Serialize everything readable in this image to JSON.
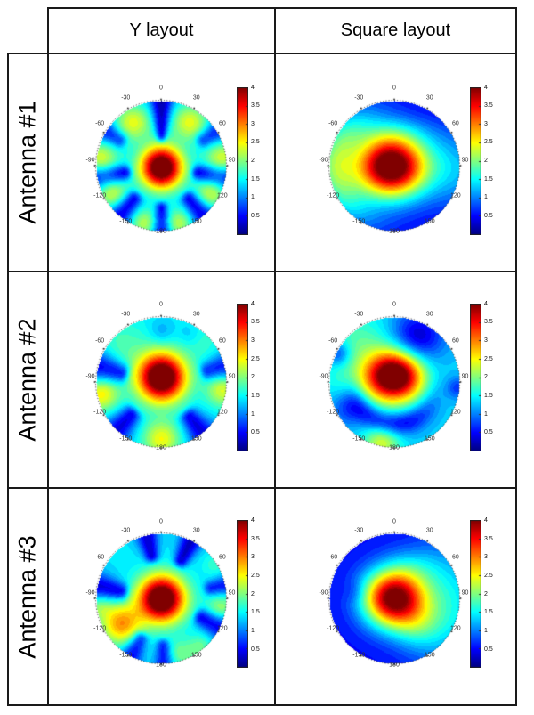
{
  "table": {
    "col_headers": [
      "Y layout",
      "Square layout"
    ],
    "row_headers": [
      "Antenna #1",
      "Antenna #2",
      "Antenna #3"
    ]
  },
  "colors": {
    "border": "#1a1a1a",
    "angle_label": "#333333",
    "tick_label": "#111111"
  },
  "chart_data": [
    {
      "type": "polar-heatmap",
      "row": "Antenna #1",
      "column": "Y layout",
      "angle_ticks_deg": [
        0,
        30,
        60,
        90,
        120,
        150,
        180,
        -150,
        -120,
        -90,
        -60,
        -30
      ],
      "colorbar": {
        "min": 0,
        "max": 4,
        "ticks": [
          4,
          3.5,
          3,
          2.5,
          2,
          1.5,
          1,
          0.5
        ],
        "colormap": "jet"
      },
      "pattern": {
        "base": 1.3,
        "gaussians_xy": [
          {
            "x": 0,
            "y": 0.02,
            "sx": 0.23,
            "sy": 0.23,
            "amp": 3.3
          }
        ],
        "blobs_polar": [
          {
            "ang": -33,
            "r": 0.8,
            "sigma": 0.2,
            "amp": 1.1
          },
          {
            "ang": 33,
            "r": 0.8,
            "sigma": 0.2,
            "amp": 1.1
          },
          {
            "ang": -85,
            "r": 0.95,
            "sigma": 0.2,
            "amp": 1.15
          },
          {
            "ang": 85,
            "r": 0.95,
            "sigma": 0.2,
            "amp": 1.15
          },
          {
            "ang": -118,
            "r": 0.88,
            "sigma": 0.18,
            "amp": 1.0
          },
          {
            "ang": 118,
            "r": 0.88,
            "sigma": 0.18,
            "amp": 1.0
          },
          {
            "ang": -163,
            "r": 0.92,
            "sigma": 0.16,
            "amp": 0.9
          },
          {
            "ang": 163,
            "r": 0.92,
            "sigma": 0.16,
            "amp": 0.9
          }
        ],
        "spokes": [
          {
            "ang": 0,
            "depth": 1.2,
            "width_deg": 7,
            "r_start": 0.3
          },
          {
            "ang": 58,
            "depth": 0.85,
            "width_deg": 6.5,
            "r_start": 0.58
          },
          {
            "ang": -58,
            "depth": 0.85,
            "width_deg": 6.5,
            "r_start": 0.58
          },
          {
            "ang": 100,
            "depth": 1.2,
            "width_deg": 8.5,
            "r_start": 0.4
          },
          {
            "ang": -100,
            "depth": 1.2,
            "width_deg": 8.5,
            "r_start": 0.4
          },
          {
            "ang": 140,
            "depth": 1.05,
            "width_deg": 7.5,
            "r_start": 0.48
          },
          {
            "ang": -140,
            "depth": 1.05,
            "width_deg": 7.5,
            "r_start": 0.48
          },
          {
            "ang": 180,
            "depth": 1.05,
            "width_deg": 6,
            "r_start": 0.48
          }
        ],
        "rings": []
      }
    },
    {
      "type": "polar-heatmap",
      "row": "Antenna #1",
      "column": "Square layout",
      "angle_ticks_deg": [
        0,
        30,
        60,
        90,
        120,
        150,
        180,
        -150,
        -120,
        -90,
        -60,
        -30
      ],
      "colorbar": {
        "min": 0,
        "max": 4,
        "ticks": [
          4,
          3.5,
          3,
          2.5,
          2,
          1.5,
          1,
          0.5
        ],
        "colormap": "jet"
      },
      "pattern": {
        "base": 0.35,
        "gaussians_xy": [
          {
            "x": -0.05,
            "y": 0,
            "sx": 0.36,
            "sy": 0.33,
            "amp": 3.2
          },
          {
            "x": -0.15,
            "y": 0,
            "sx": 0.7,
            "sy": 0.42,
            "amp": 1.0
          },
          {
            "x": 1.0,
            "y": 0.05,
            "sx": 0.38,
            "sy": 0.45,
            "amp": 0.6
          },
          {
            "x": -0.1,
            "y": -0.52,
            "sx": 0.5,
            "sy": 0.18,
            "amp": 0.3
          }
        ],
        "blobs_polar": [],
        "spokes": [],
        "rings": [
          {
            "r0": 0.92,
            "sr": 0.22,
            "amp": 1.15,
            "ang0": -90,
            "sa_deg": 48
          }
        ]
      }
    },
    {
      "type": "polar-heatmap",
      "row": "Antenna #2",
      "column": "Y layout",
      "angle_ticks_deg": [
        0,
        30,
        60,
        90,
        120,
        150,
        180,
        -150,
        -120,
        -90,
        -60,
        -30
      ],
      "colorbar": {
        "min": 0,
        "max": 4,
        "ticks": [
          4,
          3.5,
          3,
          2.5,
          2,
          1.5,
          1,
          0.5
        ],
        "colormap": "jet"
      },
      "pattern": {
        "base": 1.42,
        "gaussians_xy": [
          {
            "x": 0,
            "y": -0.08,
            "sx": 0.26,
            "sy": 0.26,
            "amp": 3.3
          }
        ],
        "blobs_polar": [
          {
            "ang": -100,
            "r": 0.95,
            "sigma": 0.2,
            "amp": 1.15
          },
          {
            "ang": 97,
            "r": 0.95,
            "sigma": 0.18,
            "amp": 0.95
          },
          {
            "ang": 180,
            "r": 0.87,
            "sigma": 0.2,
            "amp": 1.05
          },
          {
            "ang": -45,
            "r": 0.85,
            "sigma": 0.28,
            "amp": 0.35
          },
          {
            "ang": 45,
            "r": 0.9,
            "sigma": 0.22,
            "amp": 0.25
          },
          {
            "ang": 0,
            "r": 0.78,
            "sigma": 0.13,
            "amp": -0.3
          },
          {
            "ang": 30,
            "r": 0.85,
            "sigma": 0.12,
            "amp": -0.22
          }
        ],
        "spokes": [
          {
            "ang": -77,
            "depth": 1.15,
            "width_deg": 10,
            "r_start": 0.45
          },
          {
            "ang": 76,
            "depth": 0.95,
            "width_deg": 8,
            "r_start": 0.55
          },
          {
            "ang": -137,
            "depth": 1.05,
            "width_deg": 9,
            "r_start": 0.5
          },
          {
            "ang": 141,
            "depth": 1.05,
            "width_deg": 9,
            "r_start": 0.5
          }
        ],
        "rings": []
      }
    },
    {
      "type": "polar-heatmap",
      "row": "Antenna #2",
      "column": "Square layout",
      "angle_ticks_deg": [
        0,
        30,
        60,
        90,
        120,
        150,
        180,
        -150,
        -120,
        -90,
        -60,
        -30
      ],
      "colorbar": {
        "min": 0,
        "max": 4,
        "ticks": [
          4,
          3.5,
          3,
          2.5,
          2,
          1.5,
          1,
          0.5
        ],
        "colormap": "jet"
      },
      "pattern": {
        "base": 1.3,
        "gaussians_xy": [
          {
            "x": 0,
            "y": -0.1,
            "sx": 0.3,
            "sy": 0.27,
            "amp": 3.35
          }
        ],
        "blobs_polar": [
          {
            "ang": -168,
            "r": 0.93,
            "sigma": 0.2,
            "amp": 1.05
          },
          {
            "ang": -90,
            "r": 0.6,
            "sigma": 0.32,
            "amp": 0.5
          },
          {
            "ang": -40,
            "r": 0.85,
            "sigma": 0.32,
            "amp": 0.45
          },
          {
            "ang": 27,
            "r": 0.78,
            "sigma": 0.28,
            "amp": -1.05
          },
          {
            "ang": -63,
            "r": 0.97,
            "sigma": 0.13,
            "amp": -0.75
          },
          {
            "ang": 95,
            "r": 0.97,
            "sigma": 0.12,
            "amp": -0.6
          },
          {
            "ang": -118,
            "r": 0.8,
            "sigma": 0.2,
            "amp": -0.75
          }
        ],
        "spokes": [],
        "rings": [
          {
            "r0": 0.64,
            "sr": 0.13,
            "amp": -1.0,
            "ang0": -175,
            "sa_deg": 50
          }
        ]
      }
    },
    {
      "type": "polar-heatmap",
      "row": "Antenna #3",
      "column": "Y layout",
      "angle_ticks_deg": [
        0,
        30,
        60,
        90,
        120,
        150,
        180,
        -150,
        -120,
        -90,
        -60,
        -30
      ],
      "colorbar": {
        "min": 0,
        "max": 4,
        "ticks": [
          4,
          3.5,
          3,
          2.5,
          2,
          1.5,
          1,
          0.5
        ],
        "colormap": "jet"
      },
      "pattern": {
        "base": 1.4,
        "gaussians_xy": [
          {
            "x": 0,
            "y": 0,
            "sx": 0.25,
            "sy": 0.25,
            "amp": 3.3
          }
        ],
        "blobs_polar": [
          {
            "ang": -122,
            "r": 0.73,
            "sigma": 0.22,
            "amp": 1.5
          },
          {
            "ang": -95,
            "r": 0.97,
            "sigma": 0.15,
            "amp": 0.65
          },
          {
            "ang": 100,
            "r": 0.93,
            "sigma": 0.16,
            "amp": 0.75
          },
          {
            "ang": 160,
            "r": 0.9,
            "sigma": 0.16,
            "amp": 0.55
          },
          {
            "ang": 140,
            "r": 0.95,
            "sigma": 0.13,
            "amp": 0.45
          },
          {
            "ang": 57,
            "r": 0.97,
            "sigma": 0.12,
            "amp": 0.3
          }
        ],
        "spokes": [
          {
            "ang": -13,
            "depth": 1.1,
            "width_deg": 7,
            "r_start": 0.5
          },
          {
            "ang": 27,
            "depth": 1.15,
            "width_deg": 7,
            "r_start": 0.48
          },
          {
            "ang": -80,
            "depth": 1.15,
            "width_deg": 9,
            "r_start": 0.45
          },
          {
            "ang": 78,
            "depth": 0.85,
            "width_deg": 6,
            "r_start": 0.6
          },
          {
            "ang": 115,
            "depth": 1.1,
            "width_deg": 8,
            "r_start": 0.5
          },
          {
            "ang": -152,
            "depth": 1.0,
            "width_deg": 7,
            "r_start": 0.52
          },
          {
            "ang": 178,
            "depth": 0.9,
            "width_deg": 6,
            "r_start": 0.55
          }
        ],
        "rings": []
      }
    },
    {
      "type": "polar-heatmap",
      "row": "Antenna #3",
      "column": "Square layout",
      "angle_ticks_deg": [
        0,
        30,
        60,
        90,
        120,
        150,
        180,
        -150,
        -120,
        -90,
        -60,
        -30
      ],
      "colorbar": {
        "min": 0,
        "max": 4,
        "ticks": [
          4,
          3.5,
          3,
          2.5,
          2,
          1.5,
          1,
          0.5
        ],
        "colormap": "jet"
      },
      "pattern": {
        "base": 0.5,
        "gaussians_xy": [
          {
            "x": -0.02,
            "y": -0.01,
            "sx": 0.33,
            "sy": 0.31,
            "amp": 3.6
          },
          {
            "x": 0.82,
            "y": 0.08,
            "sx": 0.42,
            "sy": 0.62,
            "amp": 1.0
          },
          {
            "x": 0.35,
            "y": 0.42,
            "sx": 0.27,
            "sy": 0.27,
            "amp": 0.6
          },
          {
            "x": 0.3,
            "y": -0.5,
            "sx": 0.3,
            "sy": 0.22,
            "amp": 0.35
          }
        ],
        "blobs_polar": [
          {
            "ang": -80,
            "r": 0.62,
            "sigma": 0.12,
            "amp": -0.2
          }
        ],
        "spokes": [],
        "rings": []
      }
    }
  ]
}
